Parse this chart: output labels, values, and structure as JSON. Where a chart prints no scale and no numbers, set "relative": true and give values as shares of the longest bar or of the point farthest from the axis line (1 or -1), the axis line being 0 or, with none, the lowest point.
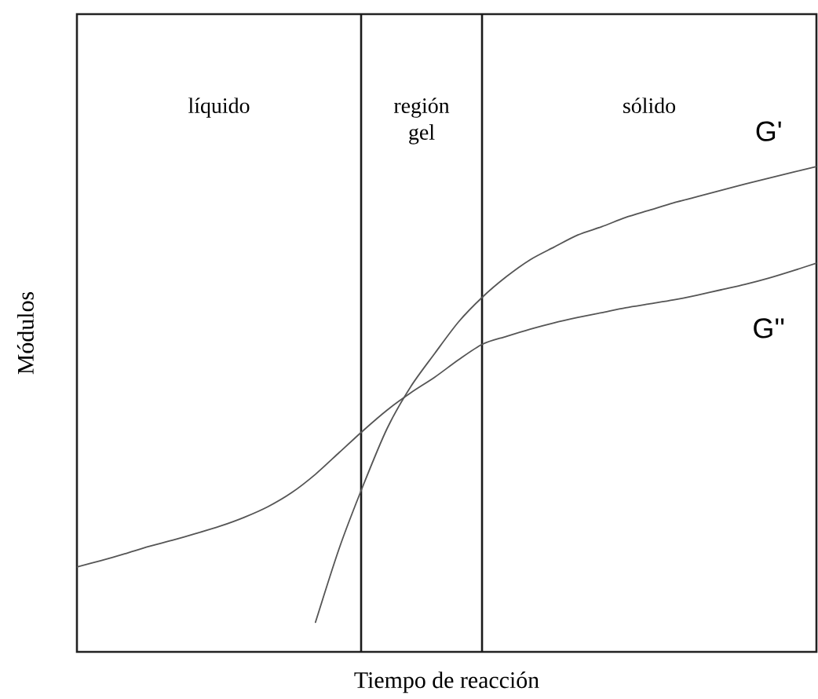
{
  "chart_data": {
    "type": "line",
    "xlabel": "Tiempo de reacción",
    "ylabel": "Módulos",
    "relative": true,
    "categories": [
      null,
      null,
      null,
      null,
      null,
      null,
      null,
      null,
      null,
      null,
      null,
      null,
      null,
      null,
      null,
      null,
      null,
      null,
      null,
      null,
      null,
      null,
      null,
      null,
      null,
      null,
      null,
      null,
      null,
      null,
      null,
      null
    ],
    "series": [
      {
        "name": "G'",
        "color": "#555555",
        "values": [
          null,
          null,
          null,
          null,
          null,
          null,
          null,
          null,
          null,
          null,
          0.061,
          0.214,
          0.343,
          0.46,
          0.547,
          0.615,
          0.68,
          0.731,
          0.773,
          0.808,
          0.834,
          0.859,
          0.876,
          0.895,
          0.91,
          0.925,
          0.938,
          0.951,
          0.964,
          0.976,
          0.988,
          1.0
        ]
      },
      {
        "name": "G''",
        "color": "#555555",
        "values": [
          0.175,
          0.188,
          0.202,
          0.217,
          0.23,
          0.244,
          0.259,
          0.277,
          0.299,
          0.328,
          0.366,
          0.411,
          0.456,
          0.498,
          0.534,
          0.566,
          0.602,
          0.634,
          0.65,
          0.665,
          0.678,
          0.689,
          0.699,
          0.709,
          0.717,
          0.725,
          0.735,
          0.746,
          0.757,
          0.77,
          0.785,
          0.801
        ]
      }
    ],
    "annotations": [
      "líquido",
      "región gel",
      "sólido"
    ]
  }
}
